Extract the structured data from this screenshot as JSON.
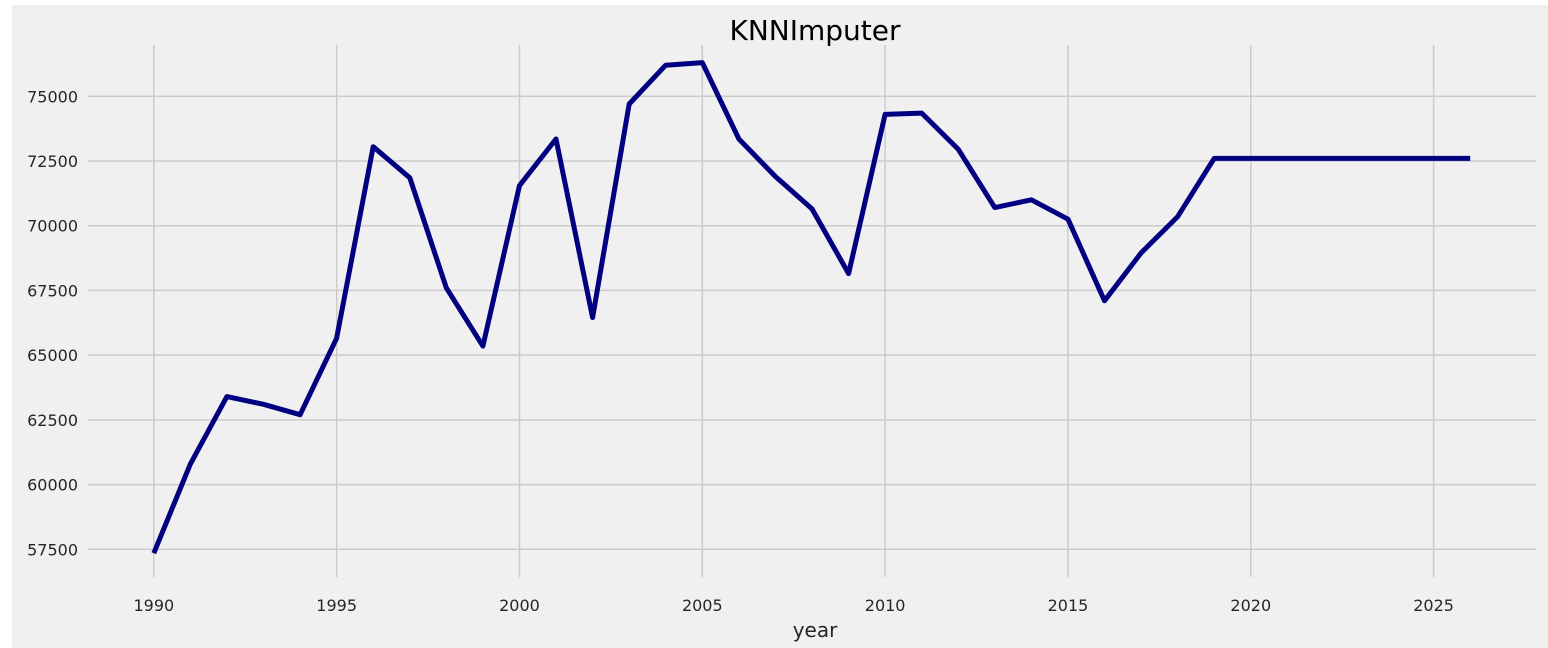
{
  "chart_data": {
    "type": "line",
    "title": "KNNImputer",
    "xlabel": "year",
    "ylabel": "",
    "xlim": [
      1988.2,
      2027.8
    ],
    "ylim": [
      56430,
      76980
    ],
    "xticks": [
      1990,
      1995,
      2000,
      2005,
      2010,
      2015,
      2020,
      2025
    ],
    "yticks": [
      57500,
      60000,
      62500,
      65000,
      67500,
      70000,
      72500,
      75000
    ],
    "grid": true,
    "colors": {
      "line": "#000080",
      "background": "#f0f0f0",
      "grid": "#cbcbcb",
      "text": "#262626"
    },
    "series": [
      {
        "x": [
          1990,
          1991,
          1992,
          1993,
          1994,
          1995,
          1996,
          1997,
          1998,
          1999,
          2000,
          2001,
          2002,
          2003,
          2004,
          2005,
          2006,
          2007,
          2008,
          2009,
          2010,
          2011,
          2012,
          2013,
          2014,
          2015,
          2016,
          2017,
          2018,
          2019,
          2020,
          2021,
          2022,
          2023,
          2024,
          2025,
          2026
        ],
        "values": [
          57350,
          60800,
          63400,
          63100,
          62700,
          65650,
          73050,
          71850,
          67600,
          65350,
          71550,
          73350,
          66450,
          74700,
          76200,
          76300,
          73350,
          71900,
          70650,
          68150,
          74300,
          74350,
          72950,
          70700,
          71000,
          70250,
          67100,
          68950,
          70350,
          72600,
          72600,
          72600,
          72600,
          72600,
          72600,
          72600,
          72600
        ]
      }
    ]
  }
}
